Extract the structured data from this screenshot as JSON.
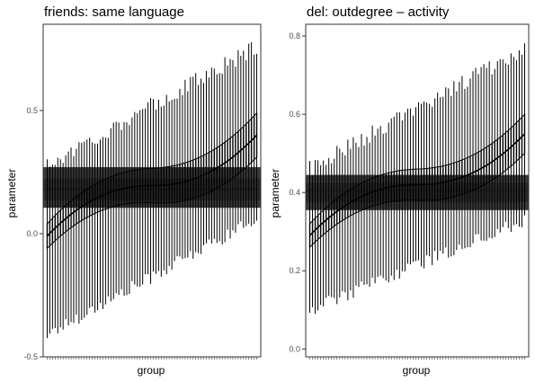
{
  "chart_data": [
    {
      "type": "caterpillar",
      "title": "friends: same language",
      "xlabel": "group",
      "ylabel": "parameter",
      "ylim": [
        -0.5,
        0.85
      ],
      "yticks": [
        -0.5,
        0.0,
        0.5
      ],
      "ytick_labels": [
        "-0.5",
        "0.0",
        "0.5"
      ],
      "n_groups": 80,
      "x_tick_labels_shown": false,
      "grid": false,
      "overall_band_outer": [
        0.105,
        0.27
      ],
      "overall_band_inner": [
        0.135,
        0.225
      ],
      "overall_estimate": 0.18,
      "median_range": [
        -0.01,
        0.4
      ],
      "inner_interval_half_width": [
        0.05,
        0.09
      ],
      "outer_interval_range_first": [
        -0.41,
        0.28
      ],
      "outer_interval_range_last": [
        0.06,
        0.76
      ]
    },
    {
      "type": "caterpillar",
      "title": "del: outdegree – activity",
      "xlabel": "group",
      "ylabel": "parameter",
      "ylim": [
        -0.02,
        0.83
      ],
      "yticks": [
        0.0,
        0.2,
        0.4,
        0.6,
        0.8
      ],
      "ytick_labels": [
        "0.0",
        "0.2",
        "0.4",
        "0.6",
        "0.8"
      ],
      "n_groups": 80,
      "x_tick_labels_shown": false,
      "grid": false,
      "overall_band_outer": [
        0.355,
        0.445
      ],
      "overall_band_inner": [
        0.375,
        0.425
      ],
      "overall_estimate": 0.405,
      "median_range": [
        0.29,
        0.55
      ],
      "inner_interval_half_width": [
        0.03,
        0.05
      ],
      "outer_interval_range_first": [
        0.1,
        0.46
      ],
      "outer_interval_range_last": [
        0.33,
        0.77
      ]
    }
  ],
  "colors": {
    "panel_border": "#333333",
    "band_outer": "#3a3a3a",
    "band_inner": "#2a2a2a",
    "interval_lines": "#000000",
    "tick_label": "#4d4d4d"
  }
}
